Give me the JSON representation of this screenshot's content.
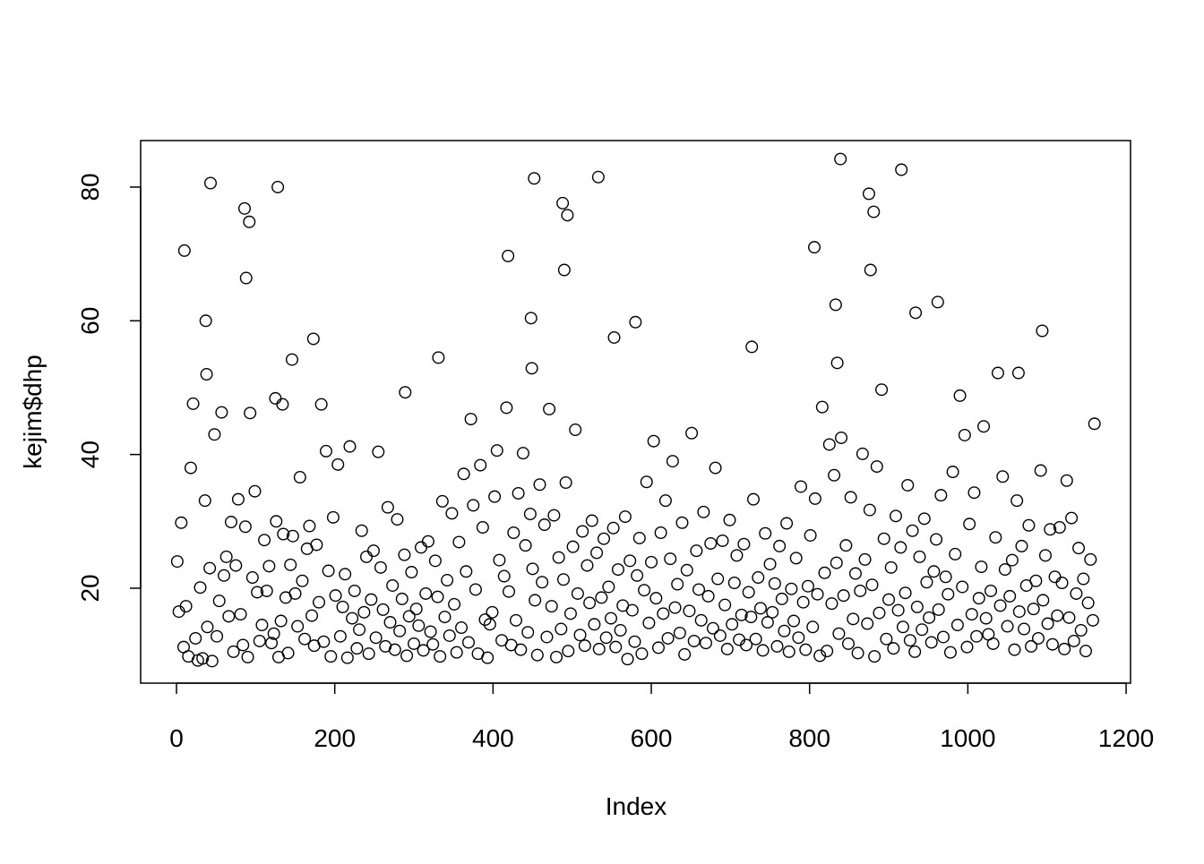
{
  "chart_data": {
    "type": "scatter",
    "x_label": "Index",
    "y_label": "kejim$dhp",
    "xlim": [
      -45.3,
      1205.6
    ],
    "ylim": [
      5.8,
      86.96
    ],
    "xticks": [
      0,
      200,
      400,
      600,
      800,
      1000,
      1200
    ],
    "yticks": [
      20,
      40,
      60,
      80
    ],
    "color": "#000000",
    "x": [
      3,
      6,
      9,
      12,
      15,
      18,
      21,
      24,
      27,
      30,
      33,
      36,
      39,
      42,
      45,
      48,
      51,
      54,
      57,
      60,
      63,
      66,
      69,
      72,
      75,
      78,
      81,
      84,
      87,
      90,
      93,
      96,
      99,
      102,
      105,
      108,
      111,
      114,
      117,
      120,
      123,
      126,
      129,
      132,
      135,
      138,
      141,
      144,
      147,
      150,
      153,
      156,
      159,
      162,
      165,
      168,
      171,
      174,
      177,
      180,
      183,
      186,
      189,
      192,
      195,
      198,
      201,
      204,
      207,
      210,
      213,
      216,
      219,
      222,
      225,
      228,
      231,
      234,
      237,
      240,
      243,
      246,
      249,
      252,
      255,
      258,
      261,
      264,
      267,
      270,
      273,
      276,
      279,
      282,
      285,
      288,
      291,
      294,
      297,
      300,
      303,
      306,
      309,
      312,
      315,
      318,
      321,
      324,
      327,
      330,
      333,
      336,
      339,
      342,
      345,
      348,
      351,
      354,
      357,
      360,
      363,
      366,
      369,
      372,
      375,
      378,
      381,
      384,
      387,
      390,
      393,
      396,
      399,
      402,
      405,
      408,
      411,
      414,
      417,
      420,
      423,
      426,
      429,
      432,
      435,
      438,
      441,
      444,
      447,
      450,
      453,
      456,
      459,
      462,
      465,
      468,
      471,
      474,
      477,
      480,
      483,
      486,
      489,
      492,
      495,
      498,
      501,
      504,
      507,
      510,
      513,
      516,
      519,
      522,
      525,
      528,
      531,
      534,
      537,
      540,
      543,
      546,
      549,
      552,
      555,
      558,
      561,
      564,
      567,
      570,
      573,
      576,
      579,
      582,
      585,
      588,
      591,
      594,
      597,
      600,
      603,
      606,
      609,
      612,
      615,
      618,
      621,
      624,
      627,
      630,
      633,
      636,
      639,
      642,
      645,
      648,
      651,
      654,
      657,
      660,
      663,
      666,
      669,
      672,
      675,
      678,
      681,
      684,
      687,
      690,
      693,
      696,
      699,
      702,
      705,
      708,
      711,
      714,
      717,
      720,
      723,
      726,
      729,
      732,
      735,
      738,
      741,
      744,
      747,
      750,
      753,
      756,
      759,
      762,
      765,
      768,
      771,
      774,
      777,
      780,
      783,
      786,
      789,
      792,
      795,
      798,
      801,
      804,
      807,
      810,
      813,
      816,
      819,
      822,
      825,
      828,
      831,
      834,
      837,
      840,
      843,
      846,
      849,
      852,
      855,
      858,
      861,
      864,
      867,
      870,
      873,
      876,
      879,
      882,
      885,
      888,
      891,
      894,
      897,
      900,
      903,
      906,
      909,
      912,
      915,
      918,
      921,
      924,
      927,
      930,
      933,
      936,
      939,
      942,
      945,
      948,
      951,
      954,
      957,
      960,
      963,
      966,
      969,
      972,
      975,
      978,
      981,
      984,
      987,
      990,
      993,
      996,
      999,
      1002,
      1005,
      1008,
      1011,
      1014,
      1017,
      1020,
      1023,
      1026,
      1029,
      1032,
      1035,
      1038,
      1041,
      1044,
      1047,
      1050,
      1053,
      1056,
      1059,
      1062,
      1065,
      1068,
      1071,
      1074,
      1077,
      1080,
      1083,
      1086,
      1089,
      1092,
      1095,
      1098,
      1101,
      1104,
      1107,
      1110,
      1113,
      1116,
      1119,
      1122,
      1125,
      1128,
      1131,
      1134,
      1137,
      1140,
      1143,
      1146,
      1149,
      1152,
      1155,
      1158,
      1,
      10,
      37,
      38,
      43,
      86,
      88,
      92,
      125,
      128,
      134,
      146,
      173,
      289,
      331,
      419,
      448,
      449,
      452,
      488,
      490,
      494,
      533,
      553,
      580,
      727,
      806,
      833,
      835,
      839,
      875,
      877,
      881,
      916,
      934,
      962,
      1064,
      1094,
      1160
    ],
    "values": [
      16.5,
      29.8,
      11.2,
      17.3,
      9.8,
      38,
      47.6,
      12.5,
      9.2,
      20.1,
      9.5,
      33.1,
      14.2,
      23,
      9.1,
      43,
      12.8,
      18.1,
      46.3,
      21.9,
      24.7,
      15.8,
      29.9,
      10.5,
      23.4,
      33.3,
      16.1,
      11.5,
      29.2,
      9.7,
      46.2,
      21.6,
      34.5,
      19.4,
      12.1,
      14.5,
      27.2,
      19.6,
      23.3,
      11.8,
      13.2,
      30,
      9.7,
      15.1,
      28.1,
      18.6,
      10.3,
      23.5,
      27.8,
      19.2,
      14.3,
      36.6,
      21.1,
      12.4,
      25.9,
      29.3,
      15.9,
      11.4,
      26.5,
      17.9,
      47.5,
      12,
      40.5,
      22.6,
      9.8,
      30.6,
      18.9,
      38.5,
      12.8,
      17.2,
      22.1,
      9.6,
      41.2,
      15.5,
      19.6,
      11,
      13.8,
      28.6,
      16.4,
      24.7,
      10.2,
      18.3,
      25.6,
      12.6,
      40.4,
      23.1,
      16.8,
      11.3,
      32.1,
      14.9,
      20.4,
      10.8,
      30.3,
      13.6,
      18.4,
      25,
      9.9,
      15.8,
      22.4,
      11.7,
      16.9,
      14.4,
      26.1,
      10.7,
      19.2,
      27,
      13.5,
      11.6,
      24.1,
      18.7,
      9.8,
      33,
      15.7,
      21.2,
      12.9,
      31.2,
      17.6,
      10.4,
      26.9,
      14.1,
      37.1,
      22.5,
      11.9,
      45.3,
      32.4,
      19.8,
      10.2,
      38.4,
      29.1,
      15.3,
      9.6,
      14.6,
      16.4,
      33.7,
      40.6,
      24.2,
      12.2,
      21.8,
      47,
      19.5,
      11.5,
      28.3,
      15.2,
      34.2,
      10.8,
      40.2,
      26.4,
      13.4,
      31.1,
      22.9,
      18.2,
      10,
      35.5,
      20.9,
      29.5,
      12.7,
      46.8,
      17.3,
      30.9,
      9.7,
      24.6,
      13.9,
      21.3,
      35.8,
      10.6,
      16.2,
      26.2,
      43.7,
      19.2,
      13,
      28.5,
      11.4,
      23.4,
      17.8,
      30.1,
      14.6,
      25.3,
      10.9,
      18.6,
      27.4,
      12.6,
      20.2,
      15.5,
      29,
      11.2,
      22.8,
      13.7,
      17.4,
      30.7,
      9.4,
      24.1,
      16.7,
      12,
      21.9,
      27.5,
      10.2,
      19.7,
      35.9,
      14.8,
      23.9,
      42,
      18.5,
      11.1,
      28.3,
      16.2,
      33.1,
      12.5,
      24.4,
      39,
      17.1,
      20.6,
      13.3,
      29.8,
      10.1,
      22.7,
      16.6,
      43.2,
      12.1,
      25.6,
      19.8,
      15.2,
      31.4,
      11.8,
      18.8,
      26.7,
      14,
      38,
      21.4,
      12.9,
      27.1,
      17.5,
      10.9,
      30.2,
      14.6,
      20.8,
      24.9,
      12.3,
      16,
      26.6,
      11.5,
      19.4,
      15.7,
      33.3,
      12.4,
      21.6,
      17,
      10.7,
      28.2,
      14.9,
      23.6,
      16.4,
      20.7,
      11.3,
      26.3,
      18.4,
      13.6,
      29.7,
      10.5,
      19.9,
      15.1,
      24.5,
      12.6,
      35.2,
      17.9,
      10.8,
      20.3,
      27.9,
      14.2,
      33.4,
      19.1,
      9.9,
      47.1,
      22.3,
      10.6,
      41.5,
      17.7,
      36.9,
      23.8,
      13.2,
      42.5,
      18.9,
      26.4,
      11.7,
      33.6,
      15.4,
      22.2,
      10.3,
      19.6,
      40.1,
      24.3,
      14.7,
      31.7,
      20.5,
      9.8,
      38.2,
      16.3,
      49.7,
      27.4,
      12.4,
      18.3,
      23.1,
      11,
      30.8,
      16.7,
      26.1,
      14.2,
      19.3,
      35.4,
      12.2,
      28.6,
      10.5,
      17.2,
      24.7,
      13.8,
      30.4,
      20.9,
      15.6,
      11.9,
      22.5,
      27.3,
      16.8,
      33.9,
      12.7,
      21.7,
      19.1,
      10.4,
      37.4,
      25.1,
      14.5,
      48.8,
      20.2,
      42.9,
      11.2,
      29.6,
      16.1,
      34.3,
      12.8,
      18.5,
      23.2,
      44.2,
      15.5,
      13.1,
      19.6,
      11.7,
      27.6,
      52.2,
      17.4,
      36.7,
      22.8,
      14.3,
      18.8,
      24.2,
      10.8,
      33.1,
      16.5,
      26.3,
      13.9,
      20.4,
      29.4,
      11.3,
      16.9,
      21.1,
      12.5,
      37.6,
      18.2,
      24.9,
      14.7,
      28.8,
      11.6,
      21.7,
      15.9,
      29.1,
      20.8,
      10.9,
      36.1,
      15.6,
      30.5,
      12.1,
      19.2,
      26,
      13.7,
      21.4,
      10.6,
      17.8,
      24.3,
      15.2,
      24.0,
      70.5,
      60.0,
      52.0,
      80.6,
      76.8,
      66.4,
      74.8,
      48.4,
      80.0,
      47.5,
      54.2,
      57.3,
      49.3,
      54.5,
      69.7,
      60.4,
      52.9,
      81.3,
      77.6,
      67.6,
      75.8,
      81.5,
      57.5,
      59.8,
      56.1,
      71.0,
      62.4,
      53.7,
      84.2,
      79.0,
      67.6,
      76.3,
      82.6,
      61.2,
      62.8,
      52.2,
      58.5,
      44.6
    ]
  }
}
